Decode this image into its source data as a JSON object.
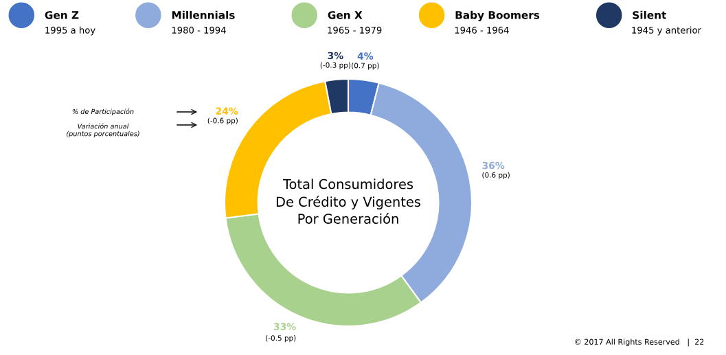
{
  "chart_data": {
    "type": "donut",
    "title": "Total Consumidores\nDe Crédito y Vigentes\nPor Generación",
    "categories": [
      "Gen Z",
      "Millennials",
      "Gen X",
      "Baby Boomers",
      "Silent"
    ],
    "values": [
      4,
      36,
      33,
      24,
      3
    ],
    "colors": [
      "#4472c4",
      "#8faadc",
      "#a9d18e",
      "#ffc000",
      "#1f3864"
    ],
    "value_labels": [
      "4%\n(0.7 pp)",
      "36%\n(0.6 pp)",
      "33%\n(-0.5 pp)",
      "24%\n(-0.6 pp)",
      "3%\n(-0.3 pp)"
    ],
    "legend": "top",
    "annotations": [
      "1995 a hoy",
      "1980 - 1994",
      "1965 - 1979",
      "1946 - 1964",
      "1945 y anterior",
      "% de Participación",
      "Variación anual\n(puntos porcentuales)",
      "© 2017 All Rights Reserved   |  22"
    ]
  }
}
